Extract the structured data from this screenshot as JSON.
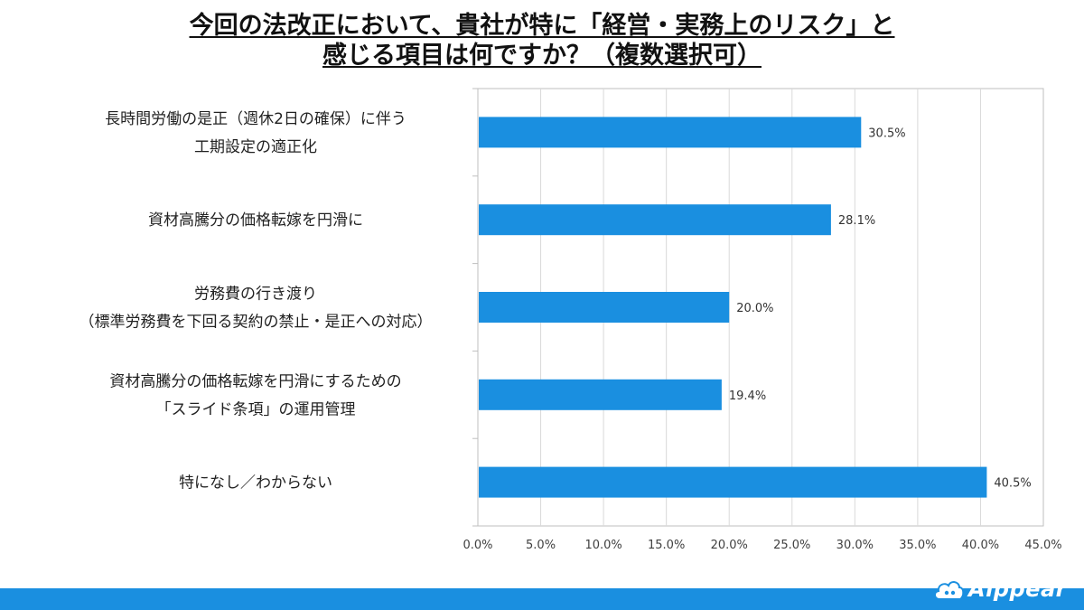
{
  "title": {
    "line1": "今回の法改正において、貴社が特に「経営・実務上のリスク」と",
    "line2": "感じる項目は何ですか？（複数選択可）"
  },
  "colors": {
    "bar": "#1a8fe0",
    "footer": "#1a8fe0",
    "grid": "#d9d9d9",
    "axis": "#bfbfbf"
  },
  "brand": {
    "name": "Aippear"
  },
  "chart_data": {
    "type": "bar",
    "orientation": "horizontal",
    "categories": [
      [
        "長時間労働の是正（週休2日の確保）に伴う",
        "工期設定の適正化"
      ],
      [
        "資材高騰分の価格転嫁を円滑に"
      ],
      [
        "労務費の行き渡り",
        "（標準労務費を下回る契約の禁止・是正への対応）"
      ],
      [
        "資材高騰分の価格転嫁を円滑にするための",
        "「スライド条項」の運用管理"
      ],
      [
        "特になし／わからない"
      ]
    ],
    "values": [
      30.5,
      28.1,
      20.0,
      19.4,
      40.5
    ],
    "value_labels": [
      "30.5%",
      "28.1%",
      "20.0%",
      "19.4%",
      "40.5%"
    ],
    "xlim": [
      0,
      45
    ],
    "xticks": [
      "0.0%",
      "5.0%",
      "10.0%",
      "15.0%",
      "20.0%",
      "25.0%",
      "30.0%",
      "35.0%",
      "40.0%",
      "45.0%"
    ],
    "grid": true,
    "legend": "none"
  }
}
